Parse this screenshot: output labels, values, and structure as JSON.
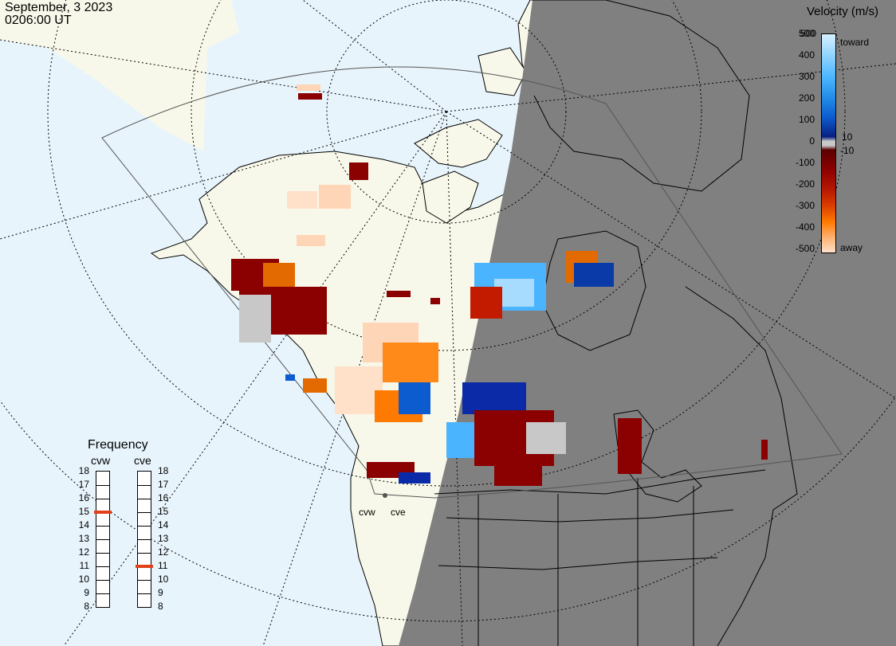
{
  "header": {
    "date": "September, 3 2023",
    "time": "0206:00 UT"
  },
  "colorbar": {
    "title": "Velocity (m/s)",
    "ticks_positive": [
      "500",
      "400",
      "300",
      "200",
      "100",
      "0"
    ],
    "ticks_negative": [
      "-100",
      "-200",
      "-300",
      "-400",
      "-500"
    ],
    "label_toward": "toward",
    "label_away": "away",
    "label_plus10": "10",
    "label_minus10": "-10",
    "colors_toward": [
      "#c8ecff",
      "#8fd3ff",
      "#4ab4ff",
      "#1e88e5",
      "#0d5ccf",
      "#0a3aa8",
      "#081f80"
    ],
    "colors_away": [
      "#5a0000",
      "#8b0000",
      "#a41010",
      "#c21b00",
      "#e04a00",
      "#ff7a00",
      "#ffa040",
      "#ffc89a",
      "#ffe0c8"
    ],
    "zero_color": "#c8c8c8"
  },
  "frequency": {
    "title": "Frequency",
    "radars": [
      "cvw",
      "cve"
    ],
    "scale": [
      "18",
      "17",
      "16",
      "15",
      "14",
      "13",
      "12",
      "11",
      "10",
      "9",
      "8"
    ],
    "values": [
      15,
      11
    ],
    "marker_color": "#e0401a"
  },
  "sites": [
    "cvw",
    "cve"
  ],
  "colors": {
    "ocean": "#e8f4fc",
    "land_day": "#f8f8ea",
    "night": "#808080",
    "scatter_gray": "#c8c8c8"
  }
}
